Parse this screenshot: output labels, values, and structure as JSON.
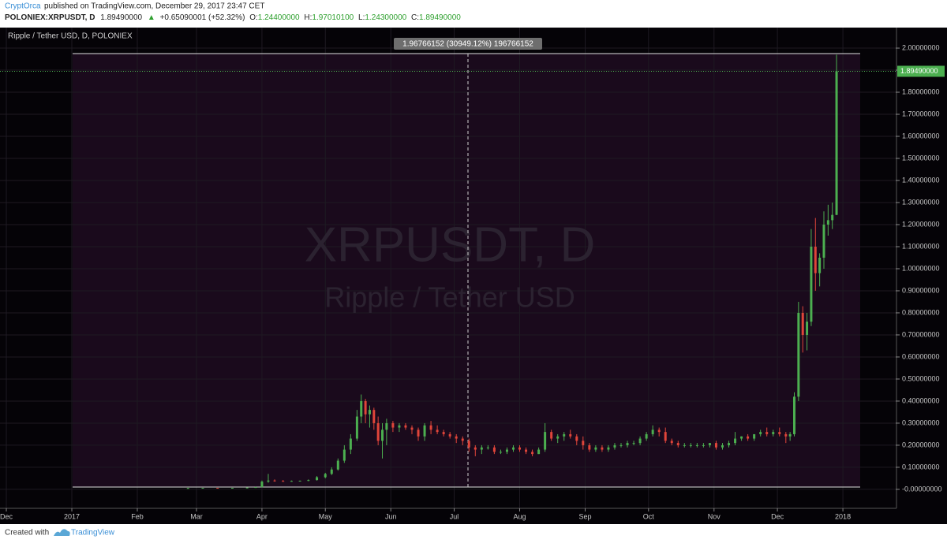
{
  "header": {
    "author": "CryptOrca",
    "published": "published on TradingView.com, December 29, 2017 23:47 CET",
    "symbol": "POLONIEX:XRPUSDT, D",
    "last": "1.89490000",
    "change": "+0.65090001 (+52.32%)",
    "o_label": "O:",
    "o": "1.24400000",
    "h_label": "H:",
    "h": "1.97010100",
    "l_label": "L:",
    "l": "1.24300000",
    "c_label": "C:",
    "c": "1.89490000"
  },
  "footer": {
    "created": "Created with",
    "brand": "TradingView"
  },
  "chart_data": {
    "type": "candlestick",
    "title": "Ripple / Tether USD, D, POLONIEX",
    "watermark": "XRPUSDT, D",
    "watermark_sub": "Ripple / Tether USD",
    "measure_label": "1.96766152 (30949.12%) 196766152",
    "price_label": "1.89490000",
    "up_color": "#4caf50",
    "down_color": "#e0453a",
    "xlim": [
      -34,
      390
    ],
    "xticks": [
      {
        "value": -31,
        "label": "Dec"
      },
      {
        "value": 0,
        "label": "2017"
      },
      {
        "value": 31,
        "label": "Feb"
      },
      {
        "value": 59,
        "label": "Mar"
      },
      {
        "value": 90,
        "label": "Apr"
      },
      {
        "value": 120,
        "label": "May"
      },
      {
        "value": 151,
        "label": "Jun"
      },
      {
        "value": 181,
        "label": "Jul"
      },
      {
        "value": 212,
        "label": "Aug"
      },
      {
        "value": 243,
        "label": "Sep"
      },
      {
        "value": 273,
        "label": "Oct"
      },
      {
        "value": 304,
        "label": "Nov"
      },
      {
        "value": 334,
        "label": "Dec"
      },
      {
        "value": 365,
        "label": "2018"
      }
    ],
    "ylim": [
      -0.086,
      2.093
    ],
    "yticks": [
      {
        "value": 0,
        "label": "-0.00000000"
      },
      {
        "value": 0.1,
        "label": "0.10000000"
      },
      {
        "value": 0.2,
        "label": "0.20000000"
      },
      {
        "value": 0.3,
        "label": "0.30000000"
      },
      {
        "value": 0.4,
        "label": "0.40000000"
      },
      {
        "value": 0.5,
        "label": "0.50000000"
      },
      {
        "value": 0.6,
        "label": "0.60000000"
      },
      {
        "value": 0.7,
        "label": "0.70000000"
      },
      {
        "value": 0.8,
        "label": "0.80000000"
      },
      {
        "value": 0.9,
        "label": "0.90000000"
      },
      {
        "value": 1.0,
        "label": "1.00000000"
      },
      {
        "value": 1.1,
        "label": "1.10000000"
      },
      {
        "value": 1.2,
        "label": "1.20000000"
      },
      {
        "value": 1.3,
        "label": "1.30000000"
      },
      {
        "value": 1.4,
        "label": "1.40000000"
      },
      {
        "value": 1.5,
        "label": "1.50000000"
      },
      {
        "value": 1.6,
        "label": "1.60000000"
      },
      {
        "value": 1.7,
        "label": "1.70000000"
      },
      {
        "value": 1.8,
        "label": "1.80000000"
      },
      {
        "value": 1.9,
        "label": "1.90000000"
      },
      {
        "value": 2.0,
        "label": "2.00000000"
      }
    ],
    "x": [
      55,
      62,
      69,
      76,
      83,
      87,
      90,
      93,
      96,
      100,
      104,
      108,
      112,
      116,
      120,
      123,
      126,
      129,
      132,
      135,
      137,
      139,
      141,
      143,
      145,
      147,
      149,
      152,
      155,
      158,
      161,
      164,
      167,
      170,
      173,
      176,
      179,
      182,
      185,
      188,
      191,
      194,
      197,
      200,
      203,
      206,
      209,
      212,
      215,
      218,
      221,
      224,
      227,
      230,
      233,
      236,
      239,
      242,
      245,
      248,
      251,
      254,
      257,
      260,
      263,
      266,
      269,
      272,
      275,
      278,
      281,
      284,
      287,
      290,
      293,
      296,
      299,
      302,
      305,
      308,
      311,
      314,
      317,
      320,
      323,
      326,
      329,
      332,
      335,
      338,
      340,
      342,
      344,
      346,
      348,
      350,
      352,
      354,
      356,
      358,
      360,
      362
    ],
    "open": [
      0.006,
      0.006,
      0.007,
      0.006,
      0.007,
      0.008,
      0.01,
      0.035,
      0.04,
      0.038,
      0.037,
      0.038,
      0.039,
      0.042,
      0.055,
      0.07,
      0.09,
      0.13,
      0.18,
      0.23,
      0.33,
      0.4,
      0.34,
      0.36,
      0.3,
      0.22,
      0.27,
      0.3,
      0.28,
      0.29,
      0.28,
      0.27,
      0.24,
      0.29,
      0.27,
      0.26,
      0.25,
      0.24,
      0.23,
      0.22,
      0.19,
      0.18,
      0.19,
      0.19,
      0.17,
      0.17,
      0.18,
      0.19,
      0.18,
      0.17,
      0.16,
      0.18,
      0.26,
      0.23,
      0.24,
      0.25,
      0.24,
      0.22,
      0.2,
      0.18,
      0.19,
      0.18,
      0.19,
      0.2,
      0.2,
      0.21,
      0.21,
      0.23,
      0.25,
      0.27,
      0.26,
      0.22,
      0.21,
      0.2,
      0.2,
      0.2,
      0.2,
      0.2,
      0.21,
      0.19,
      0.2,
      0.21,
      0.23,
      0.24,
      0.23,
      0.25,
      0.26,
      0.25,
      0.26,
      0.25,
      0.24,
      0.25,
      0.42,
      0.8,
      0.7,
      0.76,
      1.1,
      0.98,
      1.05,
      1.2,
      1.22,
      1.244
    ],
    "high": [
      0.007,
      0.007,
      0.007,
      0.007,
      0.009,
      0.011,
      0.04,
      0.07,
      0.045,
      0.042,
      0.04,
      0.04,
      0.045,
      0.06,
      0.075,
      0.1,
      0.14,
      0.2,
      0.25,
      0.36,
      0.43,
      0.41,
      0.38,
      0.37,
      0.33,
      0.3,
      0.32,
      0.31,
      0.3,
      0.3,
      0.29,
      0.28,
      0.3,
      0.31,
      0.29,
      0.27,
      0.26,
      0.25,
      0.24,
      0.23,
      0.2,
      0.2,
      0.2,
      0.2,
      0.18,
      0.19,
      0.2,
      0.2,
      0.19,
      0.18,
      0.19,
      0.3,
      0.27,
      0.25,
      0.26,
      0.27,
      0.25,
      0.24,
      0.21,
      0.2,
      0.2,
      0.2,
      0.21,
      0.21,
      0.22,
      0.22,
      0.24,
      0.26,
      0.29,
      0.28,
      0.28,
      0.23,
      0.22,
      0.21,
      0.21,
      0.21,
      0.21,
      0.21,
      0.22,
      0.21,
      0.22,
      0.26,
      0.24,
      0.25,
      0.25,
      0.27,
      0.28,
      0.27,
      0.28,
      0.26,
      0.26,
      0.44,
      0.85,
      0.83,
      0.8,
      1.18,
      1.23,
      1.07,
      1.26,
      1.29,
      1.3,
      1.970101
    ],
    "low": [
      0.005,
      0.006,
      0.006,
      0.006,
      0.006,
      0.008,
      0.01,
      0.03,
      0.035,
      0.035,
      0.035,
      0.036,
      0.037,
      0.04,
      0.05,
      0.065,
      0.085,
      0.12,
      0.16,
      0.22,
      0.3,
      0.3,
      0.28,
      0.27,
      0.2,
      0.14,
      0.2,
      0.26,
      0.26,
      0.27,
      0.25,
      0.22,
      0.22,
      0.25,
      0.25,
      0.24,
      0.23,
      0.21,
      0.2,
      0.17,
      0.15,
      0.16,
      0.18,
      0.16,
      0.16,
      0.16,
      0.17,
      0.17,
      0.16,
      0.15,
      0.16,
      0.17,
      0.22,
      0.21,
      0.22,
      0.23,
      0.2,
      0.18,
      0.17,
      0.17,
      0.17,
      0.17,
      0.18,
      0.19,
      0.19,
      0.2,
      0.2,
      0.22,
      0.24,
      0.24,
      0.21,
      0.2,
      0.19,
      0.19,
      0.19,
      0.19,
      0.19,
      0.19,
      0.18,
      0.18,
      0.19,
      0.2,
      0.22,
      0.22,
      0.22,
      0.24,
      0.24,
      0.24,
      0.24,
      0.21,
      0.22,
      0.24,
      0.4,
      0.62,
      0.63,
      0.74,
      0.9,
      0.92,
      1.0,
      1.15,
      1.18,
      1.243
    ],
    "close": [
      0.006,
      0.007,
      0.006,
      0.007,
      0.008,
      0.01,
      0.035,
      0.04,
      0.038,
      0.037,
      0.038,
      0.039,
      0.042,
      0.055,
      0.07,
      0.09,
      0.13,
      0.18,
      0.23,
      0.33,
      0.4,
      0.34,
      0.36,
      0.3,
      0.22,
      0.27,
      0.3,
      0.28,
      0.29,
      0.28,
      0.27,
      0.24,
      0.29,
      0.27,
      0.26,
      0.25,
      0.24,
      0.23,
      0.22,
      0.19,
      0.18,
      0.19,
      0.19,
      0.17,
      0.17,
      0.18,
      0.19,
      0.18,
      0.17,
      0.16,
      0.18,
      0.26,
      0.23,
      0.24,
      0.25,
      0.24,
      0.22,
      0.2,
      0.18,
      0.19,
      0.18,
      0.19,
      0.2,
      0.2,
      0.21,
      0.21,
      0.23,
      0.25,
      0.27,
      0.26,
      0.22,
      0.21,
      0.2,
      0.2,
      0.2,
      0.2,
      0.2,
      0.21,
      0.19,
      0.2,
      0.21,
      0.23,
      0.24,
      0.23,
      0.25,
      0.26,
      0.25,
      0.26,
      0.25,
      0.24,
      0.25,
      0.42,
      0.8,
      0.7,
      0.76,
      1.1,
      0.98,
      1.05,
      1.2,
      1.22,
      1.244,
      1.8949
    ]
  }
}
